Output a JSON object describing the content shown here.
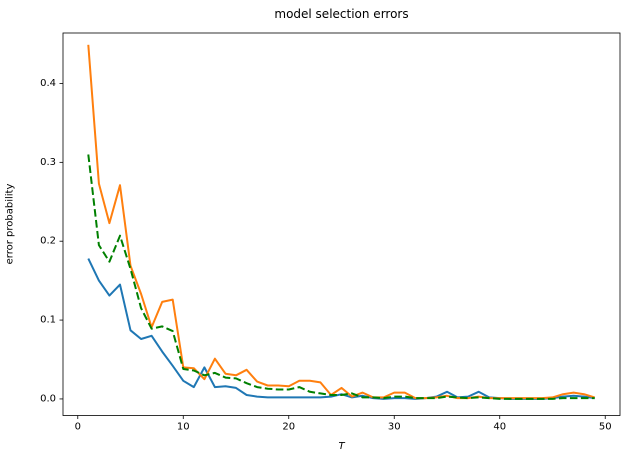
{
  "chart_data": {
    "type": "line",
    "title": "model selection errors",
    "xlabel": "T",
    "ylabel": "error probability",
    "xlim": [
      -1.4,
      51.4
    ],
    "ylim": [
      -0.021,
      0.464
    ],
    "grid": false,
    "legend": "none",
    "xtick_values": [
      0,
      10,
      20,
      30,
      40,
      50
    ],
    "xtick_labels": [
      "0",
      "10",
      "20",
      "30",
      "40",
      "50"
    ],
    "ytick_values": [
      0.0,
      0.1,
      0.2,
      0.3,
      0.4
    ],
    "ytick_labels": [
      "0.0",
      "0.1",
      "0.2",
      "0.3",
      "0.4"
    ],
    "x": [
      1,
      2,
      3,
      4,
      5,
      6,
      7,
      8,
      9,
      10,
      11,
      12,
      13,
      14,
      15,
      16,
      17,
      18,
      19,
      20,
      21,
      22,
      23,
      24,
      25,
      26,
      27,
      28,
      29,
      30,
      31,
      32,
      33,
      34,
      35,
      36,
      37,
      38,
      39,
      40,
      41,
      42,
      43,
      44,
      45,
      46,
      47,
      48,
      49
    ],
    "series": [
      {
        "name": "blue-solid",
        "color": "#1f77b4",
        "style": "solid",
        "values": [
          0.178,
          0.15,
          0.131,
          0.145,
          0.087,
          0.076,
          0.08,
          0.06,
          0.042,
          0.023,
          0.015,
          0.04,
          0.015,
          0.016,
          0.014,
          0.005,
          0.003,
          0.002,
          0.002,
          0.002,
          0.002,
          0.002,
          0.002,
          0.003,
          0.006,
          0.002,
          0.004,
          0.001,
          0.0,
          0.001,
          0.001,
          0.0,
          0.001,
          0.003,
          0.009,
          0.002,
          0.003,
          0.009,
          0.002,
          0.001,
          0.0,
          0.0,
          0.0,
          0.0,
          0.001,
          0.003,
          0.004,
          0.003,
          0.001
        ]
      },
      {
        "name": "orange-solid",
        "color": "#ff7f0e",
        "style": "solid",
        "values": [
          0.449,
          0.273,
          0.223,
          0.271,
          0.169,
          0.133,
          0.091,
          0.123,
          0.126,
          0.04,
          0.039,
          0.025,
          0.051,
          0.032,
          0.03,
          0.037,
          0.022,
          0.017,
          0.017,
          0.016,
          0.023,
          0.023,
          0.021,
          0.005,
          0.014,
          0.003,
          0.008,
          0.002,
          0.002,
          0.008,
          0.008,
          0.001,
          0.001,
          0.002,
          0.004,
          0.001,
          0.001,
          0.003,
          0.001,
          0.001,
          0.001,
          0.001,
          0.001,
          0.001,
          0.002,
          0.006,
          0.008,
          0.006,
          0.002
        ]
      },
      {
        "name": "green-dashed",
        "color": "#008000",
        "style": "dashed",
        "values": [
          0.31,
          0.195,
          0.174,
          0.207,
          0.165,
          0.115,
          0.089,
          0.092,
          0.086,
          0.038,
          0.036,
          0.03,
          0.033,
          0.027,
          0.026,
          0.02,
          0.015,
          0.013,
          0.012,
          0.012,
          0.015,
          0.009,
          0.007,
          0.005,
          0.005,
          0.007,
          0.002,
          0.002,
          0.001,
          0.003,
          0.003,
          0.001,
          0.001,
          0.001,
          0.003,
          0.002,
          0.001,
          0.002,
          0.001,
          0.0,
          0.0,
          0.0,
          0.0,
          0.0,
          0.0,
          0.001,
          0.001,
          0.001,
          0.001
        ]
      }
    ],
    "colors": {
      "frame": "#000000",
      "text": "#000000",
      "background": "#ffffff"
    }
  }
}
